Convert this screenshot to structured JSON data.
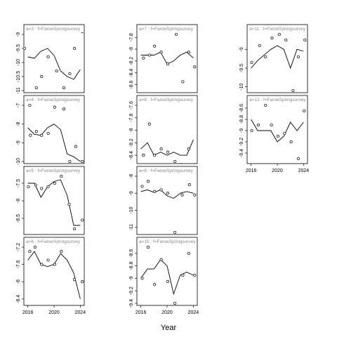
{
  "chart_data": {
    "type": "line",
    "xlabel": "Year",
    "x_ticks": [
      2016,
      2020,
      2024
    ],
    "point_style": "open-circle",
    "line_color": "#000000",
    "strip_color": "#888888",
    "panels": [
      {
        "label": "a=3 : f=FaroeSpringsurvey",
        "ylim": [
          -11.0,
          -9.0
        ],
        "yticks": [
          -11,
          -10.5,
          -10,
          -9.5,
          -9
        ],
        "observed": [
          [
            2015.5,
            -9.5
          ],
          [
            2016.4,
            -8.6
          ],
          [
            2017.3,
            -10.9
          ],
          [
            2018.1,
            -10.5
          ],
          [
            2019.1,
            -9.8
          ],
          [
            2020.4,
            -10.3
          ],
          [
            2021.5,
            -10.9
          ],
          [
            2022.4,
            -10.4
          ],
          [
            2023.1,
            -9.5
          ],
          [
            2024.3,
            -8.9
          ]
        ],
        "fitted": [
          [
            2016,
            -9.8
          ],
          [
            2017,
            -9.85
          ],
          [
            2018,
            -9.6
          ],
          [
            2019,
            -9.5
          ],
          [
            2020,
            -9.75
          ],
          [
            2021,
            -10.3
          ],
          [
            2022,
            -10.5
          ],
          [
            2023,
            -10.6
          ],
          [
            2024,
            -10.25
          ]
        ]
      },
      {
        "label": "a=4 : f=FaroeSpringsurvey",
        "ylim": [
          -10.0,
          -7.0
        ],
        "yticks": [
          -10,
          -9,
          -8,
          -7
        ],
        "observed": [
          [
            2016.3,
            -7.0
          ],
          [
            2016.4,
            -8.6
          ],
          [
            2017.3,
            -8.4
          ],
          [
            2018.1,
            -8.6
          ],
          [
            2019.1,
            -8.5
          ],
          [
            2020.1,
            -7.1
          ],
          [
            2021.5,
            -7.2
          ],
          [
            2022.4,
            -10.0
          ],
          [
            2023.3,
            -9.2
          ],
          [
            2024.3,
            -10.0
          ]
        ],
        "fitted": [
          [
            2016,
            -8.2
          ],
          [
            2017,
            -8.55
          ],
          [
            2018,
            -8.6
          ],
          [
            2019,
            -8.2
          ],
          [
            2020,
            -8.0
          ],
          [
            2021,
            -8.3
          ],
          [
            2022,
            -9.6
          ],
          [
            2023,
            -9.75
          ],
          [
            2024,
            -10.0
          ]
        ]
      },
      {
        "label": "a=5 : f=FaroeSpringsurvey",
        "ylim": [
          -8.9,
          -7.3
        ],
        "yticks": [
          -8.5,
          -8,
          -7.5
        ],
        "observed": [
          [
            2016.1,
            -7.6
          ],
          [
            2017.2,
            -7.55
          ],
          [
            2018.1,
            -7.65
          ],
          [
            2019.1,
            -7.6
          ],
          [
            2020.1,
            -7.5
          ],
          [
            2021.1,
            -7.3
          ],
          [
            2022.3,
            -8.1
          ],
          [
            2023.1,
            -8.8
          ],
          [
            2024.3,
            -8.55
          ]
        ],
        "fitted": [
          [
            2016,
            -7.5
          ],
          [
            2017,
            -7.5
          ],
          [
            2018,
            -7.9
          ],
          [
            2019,
            -7.6
          ],
          [
            2020,
            -7.45
          ],
          [
            2021,
            -7.4
          ],
          [
            2022,
            -7.85
          ],
          [
            2023,
            -8.7
          ],
          [
            2024,
            -8.7
          ]
        ]
      },
      {
        "label": "a=6 : f=FaroeSpringsurvey",
        "ylim": [
          -8.5,
          -7.2
        ],
        "yticks": [
          -8.4,
          -8.0,
          -7.6,
          -7.2
        ],
        "observed": [
          [
            2016.3,
            -7.3
          ],
          [
            2017.1,
            -7.2
          ],
          [
            2018.1,
            -7.6
          ],
          [
            2019.1,
            -7.5
          ],
          [
            2020.1,
            -7.6
          ],
          [
            2021.1,
            -7.3
          ],
          [
            2022.3,
            -8.65
          ],
          [
            2023.1,
            -7.95
          ],
          [
            2024.3,
            -8.0
          ]
        ],
        "fitted": [
          [
            2016,
            -7.5
          ],
          [
            2017,
            -7.3
          ],
          [
            2018,
            -7.6
          ],
          [
            2019,
            -7.65
          ],
          [
            2020,
            -7.6
          ],
          [
            2021,
            -7.35
          ],
          [
            2022,
            -7.5
          ],
          [
            2023,
            -7.8
          ],
          [
            2024,
            -8.4
          ]
        ]
      },
      {
        "label": "a=7 : f=FaroeSpringsurvey",
        "ylim": [
          -8.7,
          -7.75
        ],
        "yticks": [
          -8.6,
          -8.4,
          -8.2,
          -8.0,
          -7.8
        ],
        "observed": [
          [
            2016.4,
            -8.15
          ],
          [
            2017.3,
            -8.1
          ],
          [
            2018.1,
            -7.95
          ],
          [
            2019.1,
            -8.05
          ],
          [
            2020.1,
            -8.25
          ],
          [
            2021.4,
            -7.75
          ],
          [
            2022.4,
            -8.55
          ],
          [
            2023.3,
            -8.05
          ],
          [
            2024.2,
            -8.3
          ]
        ],
        "fitted": [
          [
            2016,
            -8.1
          ],
          [
            2017,
            -8.1
          ],
          [
            2018,
            -8.1
          ],
          [
            2019,
            -8.05
          ],
          [
            2020,
            -8.25
          ],
          [
            2021,
            -8.2
          ],
          [
            2022,
            -8.1
          ],
          [
            2023,
            -8.05
          ],
          [
            2024,
            -8.15
          ]
        ]
      },
      {
        "label": "a=8 : f=FaroeSpringsurvey",
        "ylim": [
          -8.5,
          -7.6
        ],
        "yticks": [
          -8.4,
          -8.2,
          -8.0,
          -7.8,
          -7.6
        ],
        "observed": [
          [
            2016.4,
            -8.4
          ],
          [
            2017.3,
            -7.9
          ],
          [
            2018.1,
            -8.4
          ],
          [
            2019.1,
            -8.3
          ],
          [
            2020.1,
            -8.35
          ],
          [
            2021.2,
            -8.5
          ],
          [
            2022.2,
            -8.55
          ],
          [
            2023.3,
            -8.3
          ],
          [
            2024.2,
            -8.55
          ]
        ],
        "fitted": [
          [
            2016,
            -8.3
          ],
          [
            2017,
            -8.2
          ],
          [
            2018,
            -8.4
          ],
          [
            2019,
            -8.35
          ],
          [
            2020,
            -8.4
          ],
          [
            2021,
            -8.35
          ],
          [
            2022,
            -8.4
          ],
          [
            2023,
            -8.4
          ],
          [
            2024,
            -8.15
          ]
        ]
      },
      {
        "label": "a=9 : f=FaroeSpringsurvey",
        "ylim": [
          -11.3,
          -8.0
        ],
        "yticks": [
          -11,
          -10,
          -9,
          -8
        ],
        "observed": [
          [
            2016.2,
            -8.6
          ],
          [
            2017.1,
            -8.3
          ],
          [
            2018.1,
            -8.9
          ],
          [
            2019.1,
            -8.8
          ],
          [
            2020.1,
            -9.0
          ],
          [
            2021.2,
            -11.3
          ],
          [
            2022.3,
            -9.1
          ],
          [
            2023.4,
            -8.5
          ],
          [
            2024.2,
            -9.1
          ]
        ],
        "fitted": [
          [
            2016,
            -8.9
          ],
          [
            2017,
            -8.8
          ],
          [
            2018,
            -8.95
          ],
          [
            2019,
            -8.8
          ],
          [
            2020,
            -9.15
          ],
          [
            2021,
            -9.3
          ],
          [
            2022,
            -9.0
          ],
          [
            2023,
            -8.9
          ],
          [
            2024,
            -9.0
          ]
        ]
      },
      {
        "label": "a=10 : f=FaroeSpringsurvey",
        "ylim": [
          -9.4,
          -8.5
        ],
        "yticks": [
          -9.4,
          -9.2,
          -9.0,
          -8.8,
          -8.6
        ],
        "observed": [
          [
            2016.2,
            -9.0
          ],
          [
            2017.1,
            -8.5
          ],
          [
            2018.1,
            -9.1
          ],
          [
            2019.1,
            -8.7
          ],
          [
            2020.1,
            -9.05
          ],
          [
            2021.2,
            -9.4
          ],
          [
            2022.4,
            -8.95
          ],
          [
            2023.3,
            -8.6
          ],
          [
            2024.2,
            -8.95
          ]
        ],
        "fitted": [
          [
            2016,
            -9.0
          ],
          [
            2017,
            -8.85
          ],
          [
            2018,
            -8.85
          ],
          [
            2019,
            -8.7
          ],
          [
            2020,
            -8.8
          ],
          [
            2021,
            -9.25
          ],
          [
            2022,
            -8.95
          ],
          [
            2023,
            -8.9
          ],
          [
            2024,
            -8.95
          ]
        ]
      },
      {
        "label": "a=11 : f=FaroeSpringsurvey",
        "ylim": [
          -10.1,
          -8.6
        ],
        "yticks": [
          -10,
          -9.5,
          -9,
          -8.5
        ],
        "observed": [
          [
            2016.1,
            -9.35
          ],
          [
            2017.3,
            -8.9
          ],
          [
            2018.2,
            -9.2
          ],
          [
            2019.2,
            -8.7
          ],
          [
            2020.3,
            -8.6
          ],
          [
            2021.3,
            -8.75
          ],
          [
            2022.4,
            -10.1
          ],
          [
            2023.2,
            -9.2
          ],
          [
            2024.2,
            -8.75
          ]
        ],
        "fitted": [
          [
            2016,
            -9.5
          ],
          [
            2017,
            -9.3
          ],
          [
            2018,
            -9.15
          ],
          [
            2019,
            -9.0
          ],
          [
            2020,
            -8.9
          ],
          [
            2021,
            -9.0
          ],
          [
            2022,
            -9.5
          ],
          [
            2023,
            -9.0
          ],
          [
            2024,
            -9.05
          ]
        ]
      },
      {
        "label": "a=12 : f=FaroeSpringsurvey",
        "ylim": [
          -9.55,
          -8.55
        ],
        "yticks": [
          -9.4,
          -9.2,
          -9.0,
          -8.8,
          -8.6
        ],
        "observed": [
          [
            2016.1,
            -9.0
          ],
          [
            2017.1,
            -8.9
          ],
          [
            2018.2,
            -8.55
          ],
          [
            2019.1,
            -8.9
          ],
          [
            2020.1,
            -9.1
          ],
          [
            2021.1,
            -9.05
          ],
          [
            2022.1,
            -9.2
          ],
          [
            2023.2,
            -9.5
          ],
          [
            2024.1,
            -8.65
          ]
        ],
        "fitted": [
          [
            2016,
            -8.8
          ],
          [
            2017,
            -9.0
          ],
          [
            2018,
            -9.0
          ],
          [
            2019,
            -9.0
          ],
          [
            2020,
            -9.2
          ],
          [
            2021,
            -9.1
          ],
          [
            2022,
            -8.85
          ],
          [
            2023,
            -9.0
          ],
          [
            2024,
            -8.85
          ]
        ]
      }
    ]
  }
}
